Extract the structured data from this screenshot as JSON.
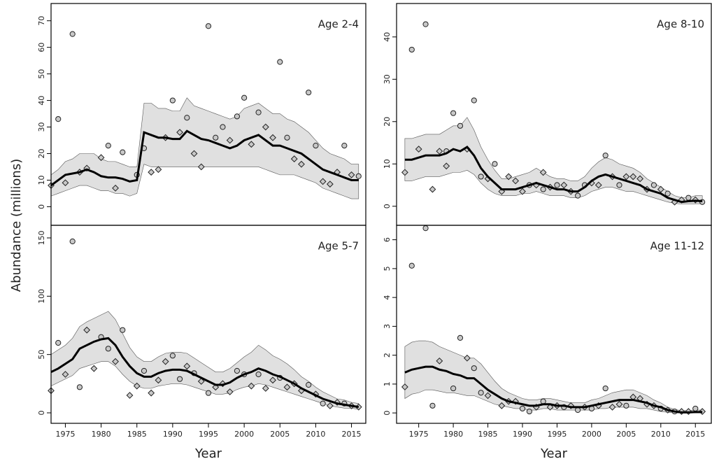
{
  "ylabel": "Abundance (millions)",
  "chart_data": [
    {
      "type": "line",
      "annotation": "Age 2-4",
      "line_color": "#000000",
      "band_color": "#e0e0e0",
      "xlim": [
        1973,
        2017
      ],
      "ylim": [
        -7,
        76.5
      ],
      "yticks": [
        0,
        10,
        20,
        30,
        40,
        50,
        60,
        70
      ],
      "x": [
        1973,
        1974,
        1975,
        1976,
        1977,
        1978,
        1979,
        1980,
        1981,
        1982,
        1983,
        1984,
        1985,
        1986,
        1987,
        1988,
        1989,
        1990,
        1991,
        1992,
        1993,
        1994,
        1995,
        1996,
        1997,
        1998,
        1999,
        2000,
        2001,
        2002,
        2003,
        2004,
        2005,
        2006,
        2007,
        2008,
        2009,
        2010,
        2011,
        2012,
        2013,
        2014,
        2015,
        2016
      ],
      "values": [
        8,
        10,
        12,
        12.5,
        13,
        14,
        13,
        11.5,
        11,
        11,
        10.5,
        9.5,
        10,
        28,
        27,
        26,
        26,
        25.5,
        25.5,
        28.5,
        27,
        25.5,
        25,
        24,
        23,
        22,
        23,
        25,
        26,
        27,
        25,
        23,
        23,
        22,
        21,
        20,
        18,
        16,
        14,
        13,
        12,
        11,
        10,
        10
      ],
      "upper": [
        12,
        14,
        17,
        18,
        20,
        20,
        20,
        18,
        17,
        17,
        16,
        15,
        15,
        39,
        39,
        37,
        37,
        36,
        36,
        41,
        38,
        37,
        36,
        35,
        34,
        33,
        34,
        37,
        38,
        39,
        37,
        35,
        35,
        33,
        32,
        30,
        28,
        25,
        22,
        20,
        19,
        18,
        16,
        16
      ],
      "lower": [
        4,
        5,
        6,
        7,
        8,
        8,
        7,
        6,
        6,
        5,
        5,
        4,
        5,
        16,
        15,
        15,
        15,
        15,
        15,
        15,
        15,
        15,
        15,
        15,
        15,
        15,
        15,
        15,
        15,
        15,
        14,
        13,
        12,
        12,
        12,
        11,
        10,
        9,
        7,
        6,
        5,
        4,
        3,
        3
      ],
      "circles": {
        "x": [
          1974,
          1976,
          1981,
          1983,
          1985,
          1986,
          1990,
          1992,
          1995,
          1996,
          1997,
          1999,
          2000,
          2002,
          2005,
          2006,
          2009,
          2010,
          2014,
          2016
        ],
        "values": [
          33,
          65,
          23,
          20.5,
          12,
          22,
          40,
          33.5,
          68,
          26,
          30,
          34,
          41,
          35.5,
          54.5,
          26,
          43,
          23,
          23,
          11.5
        ]
      },
      "diamonds": {
        "x": [
          1973,
          1975,
          1977,
          1978,
          1980,
          1982,
          1987,
          1988,
          1989,
          1991,
          1993,
          1994,
          1998,
          2001,
          2003,
          2004,
          2007,
          2008,
          2011,
          2012,
          2013,
          2015
        ],
        "values": [
          8,
          9,
          13,
          14.5,
          18.5,
          7,
          13,
          14,
          26,
          28,
          20,
          15,
          25,
          23.5,
          30,
          26,
          18,
          16,
          9.5,
          8.5,
          13,
          12
        ]
      }
    },
    {
      "type": "line",
      "annotation": "Age 8-10",
      "line_color": "#000000",
      "band_color": "#e0e0e0",
      "xlim": [
        1971.8,
        2017.3
      ],
      "ylim": [
        -4.5,
        47.9
      ],
      "yticks": [
        0,
        10,
        20,
        30,
        40
      ],
      "x": [
        1973,
        1974,
        1975,
        1976,
        1977,
        1978,
        1979,
        1980,
        1981,
        1982,
        1983,
        1984,
        1985,
        1986,
        1987,
        1988,
        1989,
        1990,
        1991,
        1992,
        1993,
        1994,
        1995,
        1996,
        1997,
        1998,
        1999,
        2000,
        2001,
        2002,
        2003,
        2004,
        2005,
        2006,
        2007,
        2008,
        2009,
        2010,
        2011,
        2012,
        2013,
        2014,
        2015,
        2016
      ],
      "values": [
        11,
        11,
        11.5,
        12,
        12,
        12,
        12.5,
        13.5,
        13,
        14,
        12,
        9,
        7,
        5.5,
        4,
        4,
        4,
        4.5,
        5,
        5.5,
        5,
        4.5,
        4,
        4,
        3.5,
        3.5,
        4.5,
        6,
        7,
        7.5,
        7,
        6.5,
        6,
        5.5,
        5,
        4,
        3.5,
        3,
        2,
        1.5,
        1,
        1.2,
        1.3,
        1.2
      ],
      "upper": [
        16,
        16,
        16.5,
        17,
        17,
        17,
        18,
        19,
        19,
        21,
        18,
        14,
        11,
        8.5,
        6.5,
        6.5,
        7,
        7.5,
        8,
        9,
        8,
        7,
        6.5,
        6.5,
        6,
        6,
        7,
        9,
        10.5,
        11.5,
        11,
        10,
        9.5,
        9,
        8,
        6.5,
        5.5,
        4.5,
        3.5,
        2.5,
        2,
        2,
        2.5,
        2.5
      ],
      "lower": [
        6,
        6,
        6.5,
        7,
        7,
        7,
        7.5,
        8,
        8,
        8.5,
        7.5,
        5.5,
        4,
        3,
        2.5,
        2.5,
        2.5,
        3,
        3,
        3.5,
        3,
        2.5,
        2.5,
        2.5,
        2,
        2,
        2.5,
        3.5,
        4,
        4.5,
        4.5,
        4,
        3.5,
        3.5,
        3,
        2.5,
        2,
        1.5,
        1,
        0.7,
        0.5,
        0.5,
        0.6,
        0.6
      ],
      "circles": {
        "x": [
          1974,
          1976,
          1979,
          1980,
          1981,
          1983,
          1984,
          1986,
          1991,
          1993,
          1995,
          1998,
          1999,
          2002,
          2004,
          2009,
          2011,
          2014,
          2016
        ],
        "values": [
          37,
          43,
          13,
          22,
          19,
          25,
          7,
          10,
          5,
          4,
          5,
          2.5,
          5,
          12,
          5,
          5,
          3,
          2,
          1
        ]
      },
      "diamonds": {
        "x": [
          1973,
          1975,
          1977,
          1978,
          1979,
          1982,
          1985,
          1987,
          1988,
          1989,
          1990,
          1992,
          1993,
          1994,
          1996,
          1997,
          2000,
          2001,
          2003,
          2005,
          2006,
          2007,
          2008,
          2010,
          2012,
          2013,
          2015
        ],
        "values": [
          8,
          13.5,
          4,
          13,
          9.5,
          13.5,
          6.5,
          3.5,
          7,
          6,
          3.5,
          5,
          8,
          4.5,
          5,
          3.5,
          5.5,
          5,
          7,
          7,
          7,
          6.5,
          4,
          4,
          1,
          1.5,
          1.5
        ]
      }
    },
    {
      "type": "line",
      "annotation": "Age 5-7",
      "xlabel": "Year",
      "line_color": "#000000",
      "band_color": "#e0e0e0",
      "xlim": [
        1973,
        2017
      ],
      "xticks": [
        1975,
        1980,
        1985,
        1990,
        1995,
        2000,
        2005,
        2010,
        2015
      ],
      "ylim": [
        -9,
        160.8
      ],
      "yticks": [
        0,
        50,
        100,
        150
      ],
      "x": [
        1973,
        1974,
        1975,
        1976,
        1977,
        1978,
        1979,
        1980,
        1981,
        1982,
        1983,
        1984,
        1985,
        1986,
        1987,
        1988,
        1989,
        1990,
        1991,
        1992,
        1993,
        1994,
        1995,
        1996,
        1997,
        1998,
        1999,
        2000,
        2001,
        2002,
        2003,
        2004,
        2005,
        2006,
        2007,
        2008,
        2009,
        2010,
        2011,
        2012,
        2013,
        2014,
        2015,
        2016
      ],
      "values": [
        35,
        38,
        42,
        46,
        55,
        58,
        61,
        63,
        64,
        58,
        48,
        40,
        34,
        31,
        31,
        34,
        36,
        37,
        37,
        36,
        33,
        30,
        27,
        24,
        24,
        26,
        30,
        33,
        35,
        38,
        36,
        33,
        31,
        28,
        25,
        21,
        18,
        15,
        12,
        10,
        8,
        7,
        6,
        5
      ],
      "upper": [
        50,
        54,
        58,
        64,
        74,
        78,
        81,
        84,
        87,
        80,
        68,
        56,
        48,
        44,
        44,
        48,
        51,
        52,
        52,
        51,
        47,
        43,
        39,
        35,
        35,
        38,
        43,
        48,
        52,
        58,
        54,
        49,
        46,
        42,
        37,
        31,
        27,
        22,
        18,
        15,
        12,
        11,
        9,
        8
      ],
      "lower": [
        23,
        26,
        29,
        32,
        38,
        40,
        42,
        44,
        44,
        40,
        33,
        27,
        23,
        21,
        21,
        23,
        24,
        25,
        25,
        24,
        22,
        20,
        18,
        16,
        16,
        17,
        20,
        22,
        23,
        25,
        24,
        22,
        20,
        18,
        16,
        14,
        12,
        10,
        8,
        6,
        5,
        4,
        4,
        3
      ],
      "circles": {
        "x": [
          1974,
          1976,
          1977,
          1980,
          1981,
          1983,
          1986,
          1990,
          1991,
          1993,
          1995,
          1999,
          2000,
          2002,
          2005,
          2009,
          2011,
          2014
        ],
        "values": [
          60,
          147,
          22,
          65,
          55,
          71,
          36,
          49,
          29,
          34,
          17,
          36,
          33,
          33,
          30,
          24,
          8,
          8
        ]
      },
      "diamonds": {
        "x": [
          1973,
          1975,
          1978,
          1979,
          1982,
          1984,
          1985,
          1987,
          1988,
          1989,
          1992,
          1994,
          1996,
          1997,
          1998,
          2001,
          2003,
          2004,
          2006,
          2007,
          2008,
          2010,
          2012,
          2013,
          2015,
          2016
        ],
        "values": [
          19,
          33,
          71,
          38,
          44,
          15,
          23,
          17,
          28,
          44,
          40,
          27,
          22,
          25,
          18,
          23,
          21,
          28,
          22,
          25,
          19,
          16,
          6,
          9,
          6,
          5
        ]
      }
    },
    {
      "type": "line",
      "annotation": "Age 11-12",
      "xlabel": "Year",
      "line_color": "#000000",
      "band_color": "#e0e0e0",
      "xlim": [
        1971.8,
        2017.3
      ],
      "xticks": [
        1975,
        1980,
        1985,
        1990,
        1995,
        2000,
        2005,
        2010,
        2015
      ],
      "ylim": [
        -0.36,
        6.5
      ],
      "yticks": [
        0,
        1,
        2,
        3,
        4,
        5,
        6
      ],
      "x": [
        1973,
        1974,
        1975,
        1976,
        1977,
        1978,
        1979,
        1980,
        1981,
        1982,
        1983,
        1984,
        1985,
        1986,
        1987,
        1988,
        1989,
        1990,
        1991,
        1992,
        1993,
        1994,
        1995,
        1996,
        1997,
        1998,
        1999,
        2000,
        2001,
        2002,
        2003,
        2004,
        2005,
        2006,
        2007,
        2008,
        2009,
        2010,
        2011,
        2012,
        2013,
        2014,
        2015,
        2016
      ],
      "values": [
        1.4,
        1.5,
        1.55,
        1.6,
        1.6,
        1.5,
        1.45,
        1.35,
        1.3,
        1.2,
        1.2,
        1,
        0.8,
        0.65,
        0.5,
        0.4,
        0.35,
        0.3,
        0.25,
        0.25,
        0.3,
        0.3,
        0.25,
        0.25,
        0.2,
        0.2,
        0.2,
        0.25,
        0.3,
        0.35,
        0.4,
        0.45,
        0.45,
        0.45,
        0.4,
        0.35,
        0.25,
        0.2,
        0.1,
        0.05,
        0.02,
        0.02,
        0.03,
        0.03
      ],
      "upper": [
        2.3,
        2.45,
        2.5,
        2.5,
        2.45,
        2.3,
        2.2,
        2.1,
        2,
        1.9,
        1.9,
        1.7,
        1.4,
        1.1,
        0.85,
        0.7,
        0.6,
        0.5,
        0.45,
        0.45,
        0.5,
        0.5,
        0.45,
        0.4,
        0.35,
        0.35,
        0.35,
        0.45,
        0.5,
        0.6,
        0.7,
        0.75,
        0.8,
        0.8,
        0.7,
        0.6,
        0.45,
        0.35,
        0.2,
        0.12,
        0.08,
        0.08,
        0.1,
        0.1
      ],
      "lower": [
        0.5,
        0.65,
        0.7,
        0.8,
        0.8,
        0.75,
        0.7,
        0.7,
        0.65,
        0.6,
        0.6,
        0.5,
        0.4,
        0.3,
        0.25,
        0.2,
        0.15,
        0.15,
        0.1,
        0.1,
        0.15,
        0.15,
        0.1,
        0.1,
        0.1,
        0.1,
        0.1,
        0.1,
        0.15,
        0.15,
        0.2,
        0.2,
        0.2,
        0.2,
        0.15,
        0.15,
        0.1,
        0.05,
        0.02,
        0,
        0,
        0,
        0,
        0
      ],
      "circles": {
        "x": [
          1974,
          1976,
          1977,
          1980,
          1981,
          1983,
          1984,
          1990,
          1991,
          1993,
          1996,
          1998,
          2000,
          2002,
          2005,
          2010,
          2012,
          2015
        ],
        "values": [
          5.1,
          6.4,
          0.25,
          0.85,
          2.6,
          1.55,
          0.7,
          0.15,
          0.05,
          0.4,
          0.2,
          0.1,
          0.15,
          0.85,
          0.25,
          0.15,
          0.05,
          0.15
        ]
      },
      "diamonds": {
        "x": [
          1973,
          1978,
          1982,
          1985,
          1987,
          1988,
          1989,
          1992,
          1994,
          1995,
          1997,
          1999,
          2001,
          2003,
          2004,
          2006,
          2007,
          2008,
          2009,
          2011,
          2013,
          2014,
          2016
        ],
        "values": [
          0.9,
          1.8,
          1.9,
          0.6,
          0.25,
          0.4,
          0.4,
          0.2,
          0.2,
          0.25,
          0.25,
          0.2,
          0.25,
          0.2,
          0.3,
          0.55,
          0.5,
          0.3,
          0.25,
          0.1,
          0.05,
          0.05,
          0.05
        ]
      }
    }
  ]
}
